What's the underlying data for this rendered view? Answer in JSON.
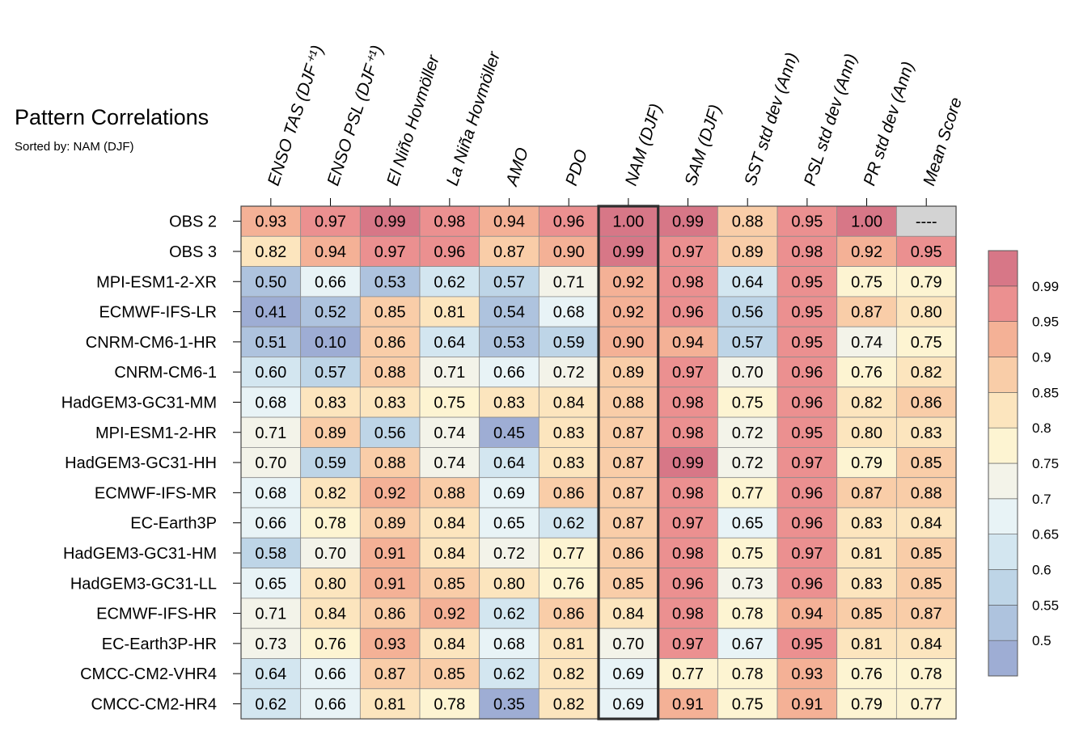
{
  "chart_data": {
    "type": "heatmap",
    "title": "Pattern Correlations",
    "subtitle": "Sorted by: NAM (DJF)",
    "highlight_column": "NAM (DJF)",
    "columns": [
      "ENSO TAS (DJF⁺¹)",
      "ENSO PSL (DJF⁺¹)",
      "El Niño Hovmöller",
      "La Niña Hovmöller",
      "AMO",
      "PDO",
      "NAM (DJF)",
      "SAM (DJF)",
      "SST std dev (Ann)",
      "PSL std dev (Ann)",
      "PR std dev (Ann)",
      "Mean Score"
    ],
    "rows": [
      "OBS 2",
      "OBS 3",
      "MPI-ESM1-2-XR",
      "ECMWF-IFS-LR",
      "CNRM-CM6-1-HR",
      "CNRM-CM6-1",
      "HadGEM3-GC31-MM",
      "MPI-ESM1-2-HR",
      "HadGEM3-GC31-HH",
      "ECMWF-IFS-MR",
      "EC-Earth3P",
      "HadGEM3-GC31-HM",
      "HadGEM3-GC31-LL",
      "ECMWF-IFS-HR",
      "EC-Earth3P-HR",
      "CMCC-CM2-VHR4",
      "CMCC-CM2-HR4"
    ],
    "values": [
      [
        "0.93",
        "0.97",
        "0.99",
        "0.98",
        "0.94",
        "0.96",
        "1.00",
        "0.99",
        "0.88",
        "0.95",
        "1.00",
        "----"
      ],
      [
        "0.82",
        "0.94",
        "0.97",
        "0.96",
        "0.87",
        "0.90",
        "0.99",
        "0.97",
        "0.89",
        "0.98",
        "0.92",
        "0.95"
      ],
      [
        "0.50",
        "0.66",
        "0.53",
        "0.62",
        "0.57",
        "0.71",
        "0.92",
        "0.98",
        "0.64",
        "0.95",
        "0.75",
        "0.79"
      ],
      [
        "0.41",
        "0.52",
        "0.85",
        "0.81",
        "0.54",
        "0.68",
        "0.92",
        "0.96",
        "0.56",
        "0.95",
        "0.87",
        "0.80"
      ],
      [
        "0.51",
        "0.10",
        "0.86",
        "0.64",
        "0.53",
        "0.59",
        "0.90",
        "0.94",
        "0.57",
        "0.95",
        "0.74",
        "0.75"
      ],
      [
        "0.60",
        "0.57",
        "0.88",
        "0.71",
        "0.66",
        "0.72",
        "0.89",
        "0.97",
        "0.70",
        "0.96",
        "0.76",
        "0.82"
      ],
      [
        "0.68",
        "0.83",
        "0.83",
        "0.75",
        "0.83",
        "0.84",
        "0.88",
        "0.98",
        "0.75",
        "0.96",
        "0.82",
        "0.86"
      ],
      [
        "0.71",
        "0.89",
        "0.56",
        "0.74",
        "0.45",
        "0.83",
        "0.87",
        "0.98",
        "0.72",
        "0.95",
        "0.80",
        "0.83"
      ],
      [
        "0.70",
        "0.59",
        "0.88",
        "0.74",
        "0.64",
        "0.83",
        "0.87",
        "0.99",
        "0.72",
        "0.97",
        "0.79",
        "0.85"
      ],
      [
        "0.68",
        "0.82",
        "0.92",
        "0.88",
        "0.69",
        "0.86",
        "0.87",
        "0.98",
        "0.77",
        "0.96",
        "0.87",
        "0.88"
      ],
      [
        "0.66",
        "0.78",
        "0.89",
        "0.84",
        "0.65",
        "0.62",
        "0.87",
        "0.97",
        "0.65",
        "0.96",
        "0.83",
        "0.84"
      ],
      [
        "0.58",
        "0.70",
        "0.91",
        "0.84",
        "0.72",
        "0.77",
        "0.86",
        "0.98",
        "0.75",
        "0.97",
        "0.81",
        "0.85"
      ],
      [
        "0.65",
        "0.80",
        "0.91",
        "0.85",
        "0.80",
        "0.76",
        "0.85",
        "0.96",
        "0.73",
        "0.96",
        "0.83",
        "0.85"
      ],
      [
        "0.71",
        "0.84",
        "0.86",
        "0.92",
        "0.62",
        "0.86",
        "0.84",
        "0.98",
        "0.78",
        "0.94",
        "0.85",
        "0.87"
      ],
      [
        "0.73",
        "0.76",
        "0.93",
        "0.84",
        "0.68",
        "0.81",
        "0.70",
        "0.97",
        "0.67",
        "0.95",
        "0.81",
        "0.84"
      ],
      [
        "0.64",
        "0.66",
        "0.87",
        "0.85",
        "0.62",
        "0.82",
        "0.69",
        "0.77",
        "0.78",
        "0.93",
        "0.76",
        "0.78"
      ],
      [
        "0.62",
        "0.66",
        "0.81",
        "0.78",
        "0.35",
        "0.82",
        "0.69",
        "0.91",
        "0.75",
        "0.91",
        "0.79",
        "0.77"
      ]
    ],
    "missing_label": "----",
    "missing_color": "#d3d3d3",
    "colorbar": {
      "tick_labels": [
        "0.99",
        "0.95",
        "0.9",
        "0.85",
        "0.8",
        "0.75",
        "0.7",
        "0.65",
        "0.6",
        "0.55",
        "0.5"
      ],
      "thresholds": [
        0.5,
        0.55,
        0.6,
        0.65,
        0.7,
        0.75,
        0.8,
        0.85,
        0.9,
        0.95,
        0.99
      ],
      "colors": [
        "#9eadd4",
        "#aec3de",
        "#bed5e7",
        "#d3e6f0",
        "#e8f3f6",
        "#f3f3e9",
        "#fdf4d2",
        "#fce5be",
        "#f9cda8",
        "#f4b196",
        "#eb9090",
        "#d77787"
      ]
    }
  }
}
